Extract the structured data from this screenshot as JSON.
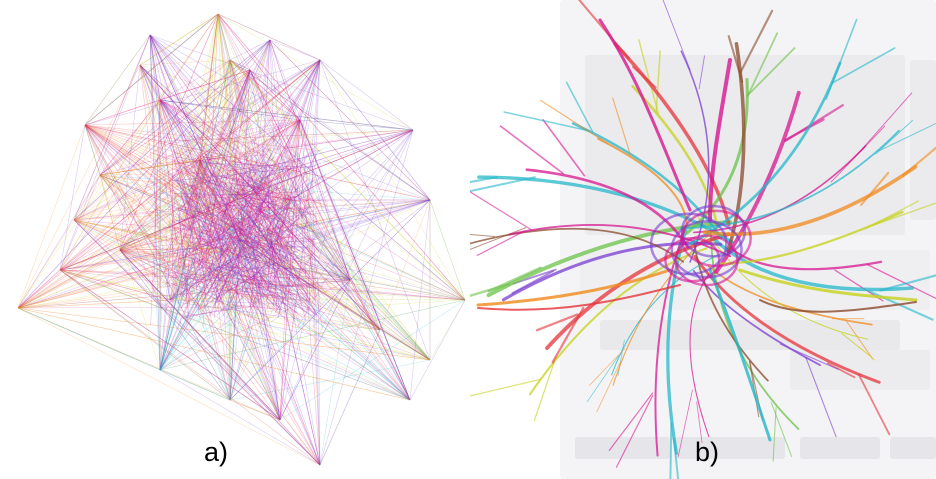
{
  "panels": [
    {
      "id": "a",
      "caption": "a)",
      "style": "dense straight-line node-link graph"
    },
    {
      "id": "b",
      "caption": "b)",
      "style": "edge-bundled node-link graph"
    }
  ],
  "colors": {
    "magenta": "#d6168f",
    "purple": "#7a3ccf",
    "yellow_green": "#c6d21a",
    "red": "#e5333a",
    "orange": "#f08a1c",
    "cyan": "#25b7c9",
    "green": "#6cc24a",
    "brown": "#8b4a2b",
    "background_ui": "#f1f1f3"
  }
}
